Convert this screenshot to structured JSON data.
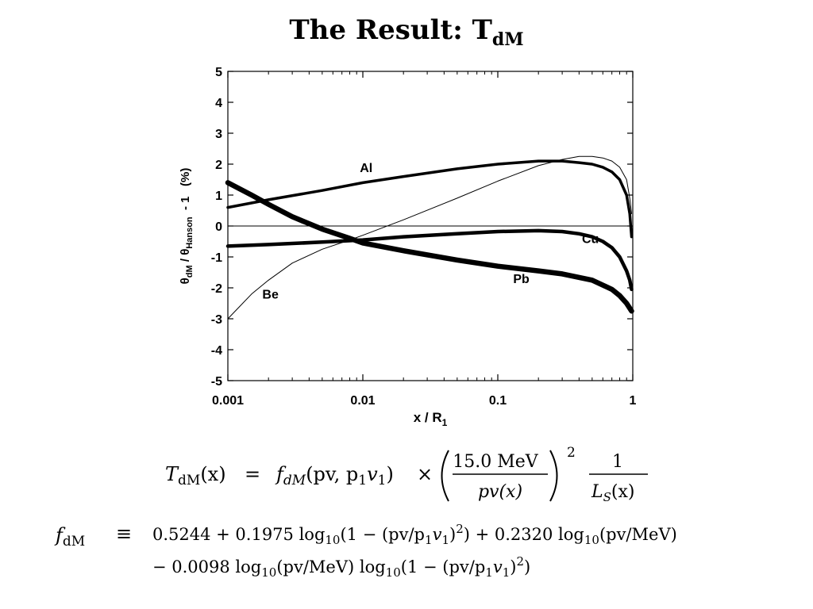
{
  "slide": {
    "title_main": "The Result: T",
    "title_sub": "dM"
  },
  "chart_data": {
    "type": "line",
    "title": "",
    "xscale": "log",
    "xlim": [
      0.001,
      1
    ],
    "ylim": [
      -5,
      5
    ],
    "grid": false,
    "xlabel": "x / R",
    "xlabel_sub": "1",
    "ylabel_parts": [
      "θ",
      "dM",
      " / θ",
      "Hanson",
      "  - 1   (%)"
    ],
    "x_ticks": [
      {
        "value": 0.001,
        "label": "0.001"
      },
      {
        "value": 0.01,
        "label": "0.01"
      },
      {
        "value": 0.1,
        "label": "0.1"
      },
      {
        "value": 1,
        "label": "1"
      }
    ],
    "y_ticks": [
      {
        "value": 5,
        "label": "5"
      },
      {
        "value": 4,
        "label": "4"
      },
      {
        "value": 3,
        "label": "3"
      },
      {
        "value": 2,
        "label": "2"
      },
      {
        "value": 1,
        "label": "1"
      },
      {
        "value": 0,
        "label": "0"
      },
      {
        "value": -1,
        "label": "-1"
      },
      {
        "value": -2,
        "label": "-2"
      },
      {
        "value": -3,
        "label": "-3"
      },
      {
        "value": -4,
        "label": "-4"
      },
      {
        "value": -5,
        "label": "-5"
      }
    ],
    "zero_line": 0,
    "series": [
      {
        "name": "Be",
        "stroke_weight": "thin",
        "label_at": [
          0.0018,
          -2.35
        ],
        "points": [
          [
            0.001,
            -3.0
          ],
          [
            0.0015,
            -2.2
          ],
          [
            0.002,
            -1.75
          ],
          [
            0.003,
            -1.2
          ],
          [
            0.005,
            -0.75
          ],
          [
            0.008,
            -0.45
          ],
          [
            0.01,
            -0.3
          ],
          [
            0.02,
            0.2
          ],
          [
            0.05,
            0.9
          ],
          [
            0.1,
            1.45
          ],
          [
            0.2,
            1.95
          ],
          [
            0.3,
            2.15
          ],
          [
            0.4,
            2.25
          ],
          [
            0.5,
            2.25
          ],
          [
            0.6,
            2.2
          ],
          [
            0.7,
            2.1
          ],
          [
            0.8,
            1.9
          ],
          [
            0.9,
            1.5
          ],
          [
            0.95,
            0.9
          ],
          [
            0.98,
            0.4
          ]
        ]
      },
      {
        "name": "Al",
        "stroke_weight": "medium",
        "label_at": [
          0.0095,
          1.75
        ],
        "points": [
          [
            0.001,
            0.6
          ],
          [
            0.002,
            0.85
          ],
          [
            0.005,
            1.15
          ],
          [
            0.01,
            1.4
          ],
          [
            0.02,
            1.6
          ],
          [
            0.05,
            1.85
          ],
          [
            0.1,
            2.0
          ],
          [
            0.2,
            2.1
          ],
          [
            0.3,
            2.1
          ],
          [
            0.4,
            2.05
          ],
          [
            0.5,
            2.0
          ],
          [
            0.6,
            1.9
          ],
          [
            0.7,
            1.75
          ],
          [
            0.8,
            1.5
          ],
          [
            0.9,
            1.0
          ],
          [
            0.95,
            0.4
          ],
          [
            0.98,
            -0.35
          ]
        ]
      },
      {
        "name": "Cu",
        "stroke_weight": "thick",
        "label_at": [
          0.42,
          -0.55
        ],
        "points": [
          [
            0.001,
            -0.65
          ],
          [
            0.002,
            -0.6
          ],
          [
            0.005,
            -0.52
          ],
          [
            0.01,
            -0.45
          ],
          [
            0.02,
            -0.35
          ],
          [
            0.05,
            -0.25
          ],
          [
            0.1,
            -0.18
          ],
          [
            0.2,
            -0.15
          ],
          [
            0.3,
            -0.18
          ],
          [
            0.4,
            -0.25
          ],
          [
            0.5,
            -0.35
          ],
          [
            0.6,
            -0.5
          ],
          [
            0.7,
            -0.7
          ],
          [
            0.8,
            -1.0
          ],
          [
            0.9,
            -1.45
          ],
          [
            0.95,
            -1.75
          ],
          [
            0.98,
            -2.05
          ]
        ]
      },
      {
        "name": "Pb",
        "stroke_weight": "heavy",
        "label_at": [
          0.13,
          -1.85
        ],
        "points": [
          [
            0.001,
            1.4
          ],
          [
            0.0015,
            1.0
          ],
          [
            0.002,
            0.7
          ],
          [
            0.003,
            0.3
          ],
          [
            0.005,
            -0.1
          ],
          [
            0.008,
            -0.4
          ],
          [
            0.01,
            -0.55
          ],
          [
            0.02,
            -0.8
          ],
          [
            0.05,
            -1.1
          ],
          [
            0.1,
            -1.3
          ],
          [
            0.2,
            -1.45
          ],
          [
            0.3,
            -1.55
          ],
          [
            0.5,
            -1.75
          ],
          [
            0.7,
            -2.05
          ],
          [
            0.8,
            -2.25
          ],
          [
            0.9,
            -2.5
          ],
          [
            0.98,
            -2.75
          ]
        ]
      }
    ]
  },
  "equations": {
    "eq1": {
      "lhs_T": "T",
      "lhs_sub": "dM",
      "lhs_arg": "(x)",
      "eq": "=",
      "f": "f",
      "f_sub": "dM",
      "f_args": "(pv, p",
      "f_args_sub": "1",
      "f_args_end": "v",
      "f_args_sub2": "1",
      "f_close": ")",
      "times": "×",
      "frac_num": "15.0 MeV",
      "frac_den": "pv(x)",
      "exponent": "2",
      "frac2_num": "1",
      "frac2_den_L": "L",
      "frac2_den_sub": "S",
      "frac2_den_arg": "(x)"
    },
    "eq2": {
      "lhs_f": "f",
      "lhs_sub": "dM",
      "equiv": "≡",
      "line1": "0.5244 + 0.1975 log",
      "line1_sub": "10",
      "line1_b": "(1 − (pv/p",
      "line1_b_sub": "1",
      "line1_c": "v",
      "line1_c_sub": "1",
      "line1_d": ")",
      "line1_d_sup": "2",
      "line1_e": ") + 0.2320 log",
      "line1_e_sub": "10",
      "line1_f": "(pv/MeV)",
      "line2": "− 0.0098 log",
      "line2_sub": "10",
      "line2_b": "(pv/MeV) log",
      "line2_b_sub": "10",
      "line2_c": "(1 − (pv/p",
      "line2_c_sub": "1",
      "line2_d": "v",
      "line2_d_sub": "1",
      "line2_e": ")",
      "line2_e_sup": "2",
      "line2_f": ")"
    }
  }
}
